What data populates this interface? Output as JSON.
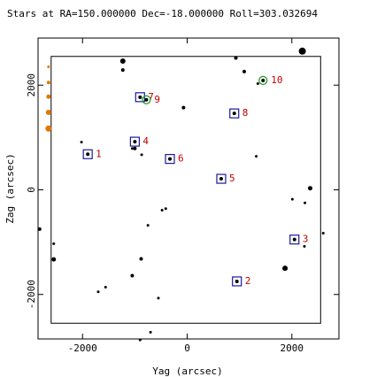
{
  "chart_data": {
    "type": "scatter",
    "title": "Stars at RA=150.000000 Dec=-18.000000 Roll=303.032694",
    "xlabel": "Yag (arcsec)",
    "ylabel": "Zag (arcsec)",
    "xlim": [
      -2850,
      2900
    ],
    "ylim": [
      -2850,
      2900
    ],
    "xticks": [
      -2000,
      0,
      2000
    ],
    "yticks": [
      -2000,
      0,
      2000
    ],
    "grid": false,
    "colors": {
      "box": "#1a1aa0",
      "label": "#c00000",
      "green": "#1a9a1a",
      "orange": "#e07800",
      "star": "#000000"
    },
    "field_of_view": {
      "corners": [
        [
          -2600,
          2550
        ],
        [
          2550,
          2550
        ],
        [
          2550,
          -2550
        ],
        [
          -2600,
          -2550
        ]
      ]
    },
    "selected_stars": [
      {
        "label": "1",
        "y": -1900,
        "z": 680,
        "kind": "box"
      },
      {
        "label": "2",
        "y": 950,
        "z": -1750,
        "kind": "box"
      },
      {
        "label": "3",
        "y": 2050,
        "z": -950,
        "kind": "box"
      },
      {
        "label": "4",
        "y": -1000,
        "z": 920,
        "kind": "box"
      },
      {
        "label": "5",
        "y": 650,
        "z": 210,
        "kind": "box"
      },
      {
        "label": "6",
        "y": -330,
        "z": 590,
        "kind": "box"
      },
      {
        "label": "7",
        "y": -900,
        "z": 1770,
        "kind": "box"
      },
      {
        "label": "8",
        "y": 900,
        "z": 1460,
        "kind": "box"
      },
      {
        "label": "9",
        "y": -780,
        "z": 1720,
        "kind": "circle"
      },
      {
        "label": "10",
        "y": 1450,
        "z": 2090,
        "kind": "circle"
      }
    ],
    "field_stars": [
      {
        "y": -1230,
        "z": 2460,
        "m": 3
      },
      {
        "y": -1230,
        "z": 2290,
        "m": 2
      },
      {
        "y": 930,
        "z": 2520,
        "m": 2
      },
      {
        "y": 1090,
        "z": 2260,
        "m": 2
      },
      {
        "y": 2200,
        "z": 2650,
        "m": 4
      },
      {
        "y": 1350,
        "z": 2030,
        "m": 1.5
      },
      {
        "y": -70,
        "z": 1570,
        "m": 2
      },
      {
        "y": -2020,
        "z": 910,
        "m": 1.5
      },
      {
        "y": -870,
        "z": 670,
        "m": 1.5
      },
      {
        "y": 1320,
        "z": 640,
        "m": 1.5
      },
      {
        "y": -1000,
        "z": 790,
        "m": 2
      },
      {
        "y": 2350,
        "z": 30,
        "m": 2.5
      },
      {
        "y": 2010,
        "z": -180,
        "m": 1.5
      },
      {
        "y": 2250,
        "z": -250,
        "m": 1.5
      },
      {
        "y": -480,
        "z": -390,
        "m": 1.5
      },
      {
        "y": -410,
        "z": -360,
        "m": 1.5
      },
      {
        "y": -750,
        "z": -680,
        "m": 1.5
      },
      {
        "y": -2550,
        "z": -1030,
        "m": 1.5
      },
      {
        "y": -2820,
        "z": -750,
        "m": 2
      },
      {
        "y": 2600,
        "z": -830,
        "m": 1.5
      },
      {
        "y": 2240,
        "z": -1080,
        "m": 1.5
      },
      {
        "y": -2550,
        "z": -1330,
        "m": 2.5
      },
      {
        "y": -1050,
        "z": -1640,
        "m": 2
      },
      {
        "y": 1870,
        "z": -1500,
        "m": 3
      },
      {
        "y": -1560,
        "z": -1860,
        "m": 1.5
      },
      {
        "y": -1700,
        "z": -1950,
        "m": 1.5
      },
      {
        "y": -550,
        "z": -2070,
        "m": 1.5
      },
      {
        "y": -700,
        "z": -2720,
        "m": 1.5
      },
      {
        "y": -900,
        "z": -2870,
        "m": 1.5
      },
      {
        "y": -880,
        "z": -1320,
        "m": 2
      },
      {
        "y": -1050,
        "z": 790,
        "m": 1.5
      }
    ],
    "guide_stars": [
      {
        "y": -2650,
        "z": 2350,
        "m": 1.5
      },
      {
        "y": -2650,
        "z": 2050,
        "m": 2
      },
      {
        "y": -2650,
        "z": 1780,
        "m": 2.5
      },
      {
        "y": -2650,
        "z": 1480,
        "m": 3
      },
      {
        "y": -2650,
        "z": 1170,
        "m": 3.5
      }
    ]
  }
}
